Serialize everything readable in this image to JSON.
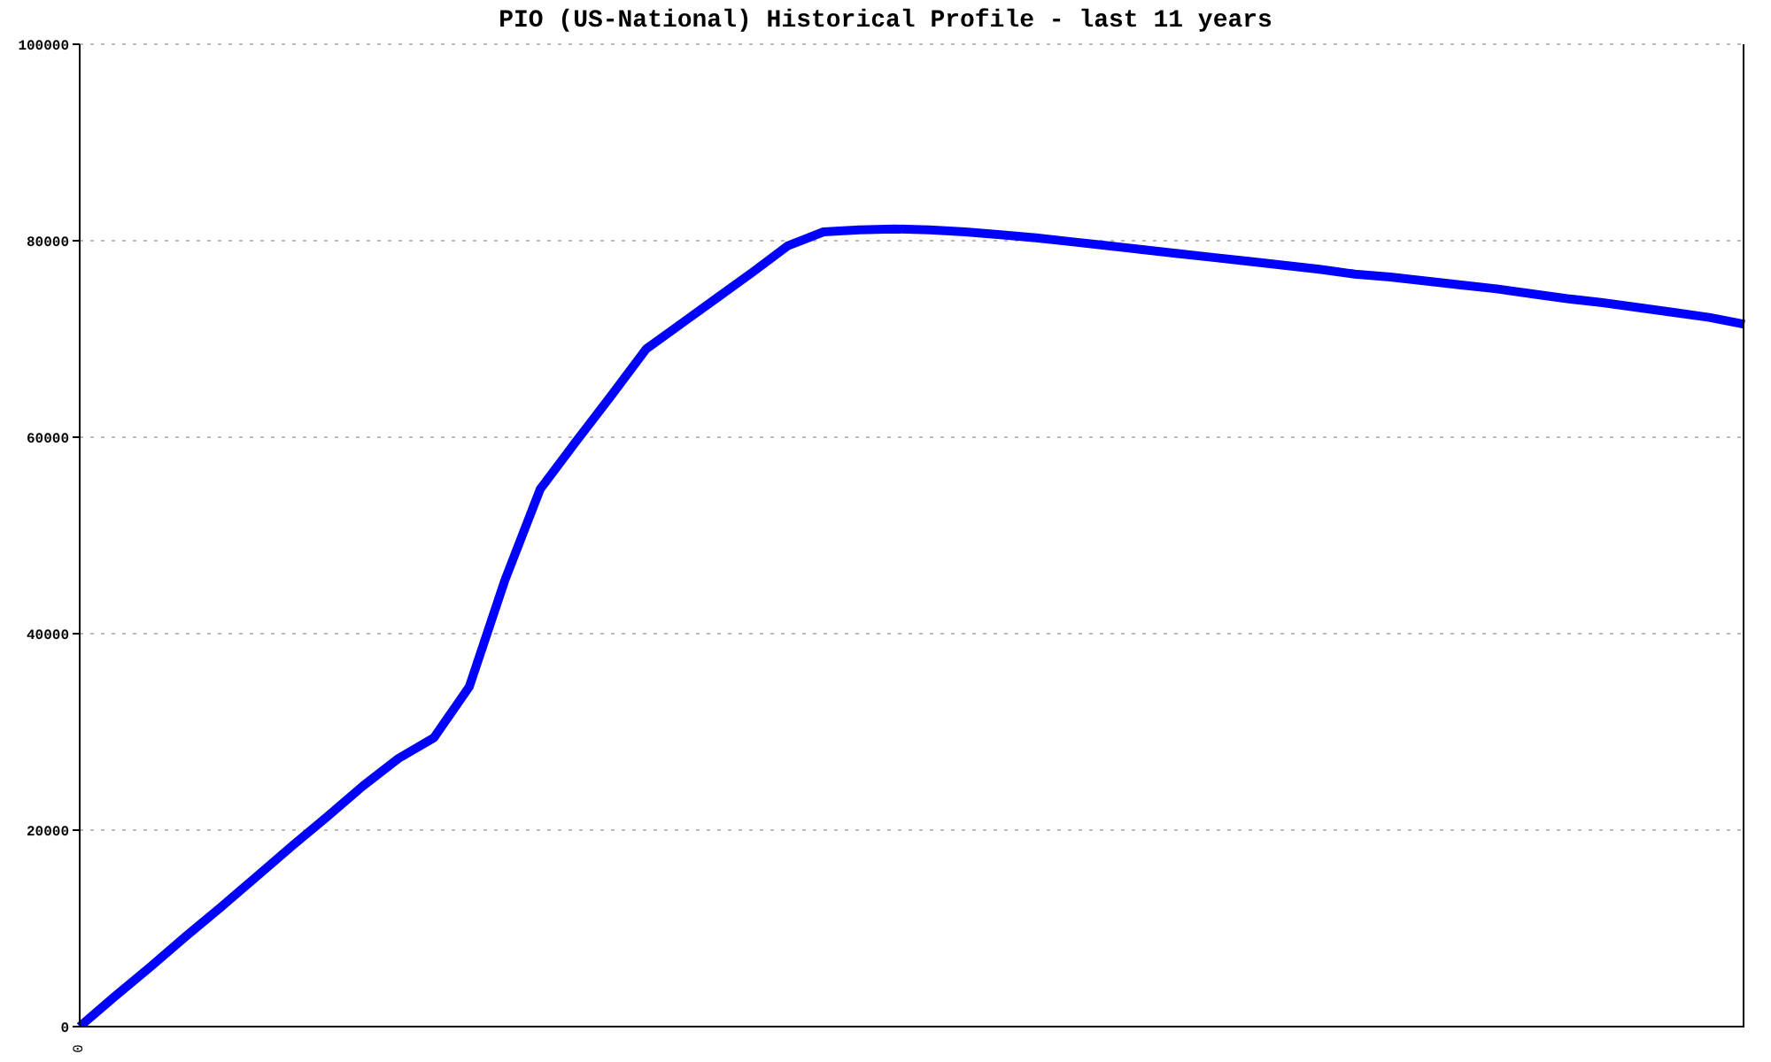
{
  "chart_data": {
    "type": "line",
    "title": "PIO (US-National) Historical Profile - last 11 years",
    "categories": [
      "0",
      null,
      null,
      null,
      null,
      null,
      null,
      null,
      null,
      null,
      null,
      null,
      null,
      null,
      null,
      null,
      null,
      null,
      null,
      null,
      null,
      null,
      null,
      null,
      null,
      null,
      null,
      null,
      null,
      null,
      null,
      null,
      null,
      null,
      null,
      null,
      null,
      null,
      null,
      null,
      null,
      null,
      null,
      null,
      null,
      null,
      null,
      null
    ],
    "series": [
      {
        "color": "#0000ff",
        "values": [
          0,
          3100,
          6100,
          9200,
          12200,
          15300,
          18400,
          21400,
          24500,
          27300,
          29400,
          34600,
          45400,
          54700,
          59500,
          64200,
          69000,
          71600,
          74200,
          76800,
          79500,
          80900,
          81100,
          81200,
          81100,
          80900,
          80600,
          80300,
          79900,
          79500,
          79100,
          78700,
          78300,
          77900,
          77500,
          77100,
          76600,
          76300,
          75900,
          75500,
          75100,
          74600,
          74100,
          73700,
          73200,
          72700,
          72200,
          71500
        ]
      }
    ],
    "ylim": [
      0,
      100000
    ],
    "yticks": [
      0,
      20000,
      40000,
      60000,
      80000,
      100000
    ],
    "grid": "y",
    "marker": "none",
    "line_style": "solid"
  }
}
